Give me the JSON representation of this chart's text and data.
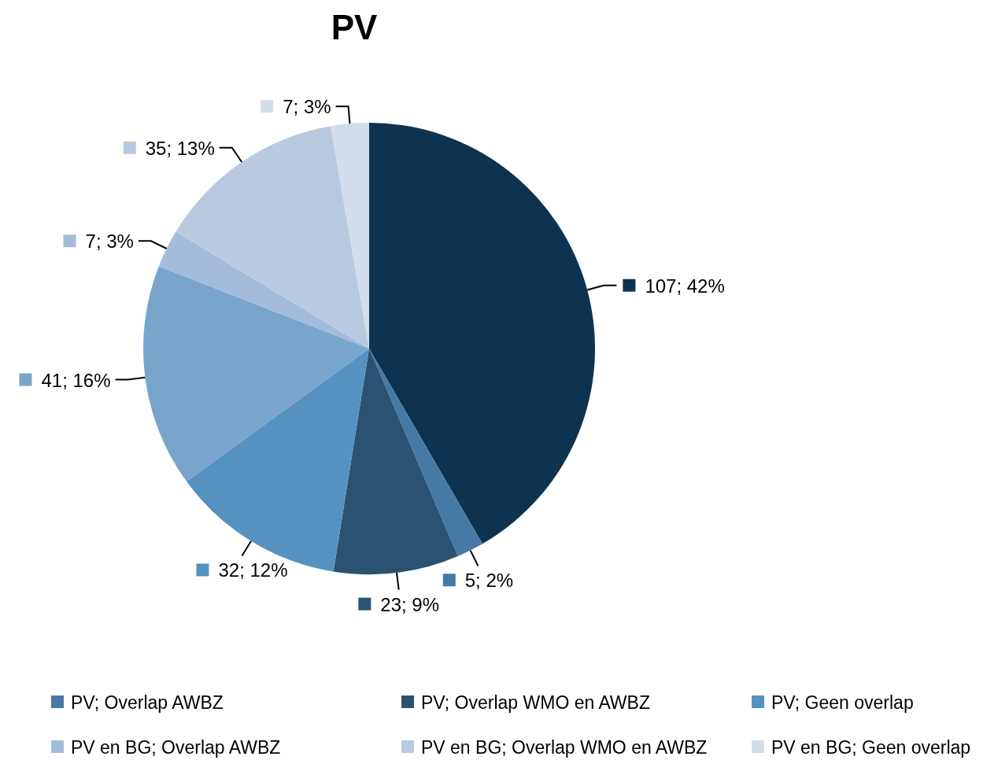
{
  "chart_data": {
    "type": "pie",
    "title": "PV",
    "categories": [
      null,
      "PV; Overlap AWBZ",
      "PV; Overlap WMO en AWBZ",
      "PV; Geen overlap",
      null,
      "PV en BG; Overlap AWBZ",
      "PV en BG; Overlap WMO en AWBZ",
      "PV en BG; Geen overlap"
    ],
    "values": [
      107,
      5,
      23,
      32,
      41,
      7,
      35,
      7
    ],
    "value_labels": [
      "107; 42%",
      "5; 2%",
      "23; 9%",
      "32; 12%",
      "41; 16%",
      "7; 3%",
      "35; 13%",
      "7; 3%"
    ],
    "colors": [
      "#0d3350",
      "#4679a3",
      "#2b5272",
      "#5592c0",
      "#79a4cc",
      "#a3bcdb",
      "#b9cae0",
      "#d3dcea"
    ],
    "legend": "bottom"
  }
}
